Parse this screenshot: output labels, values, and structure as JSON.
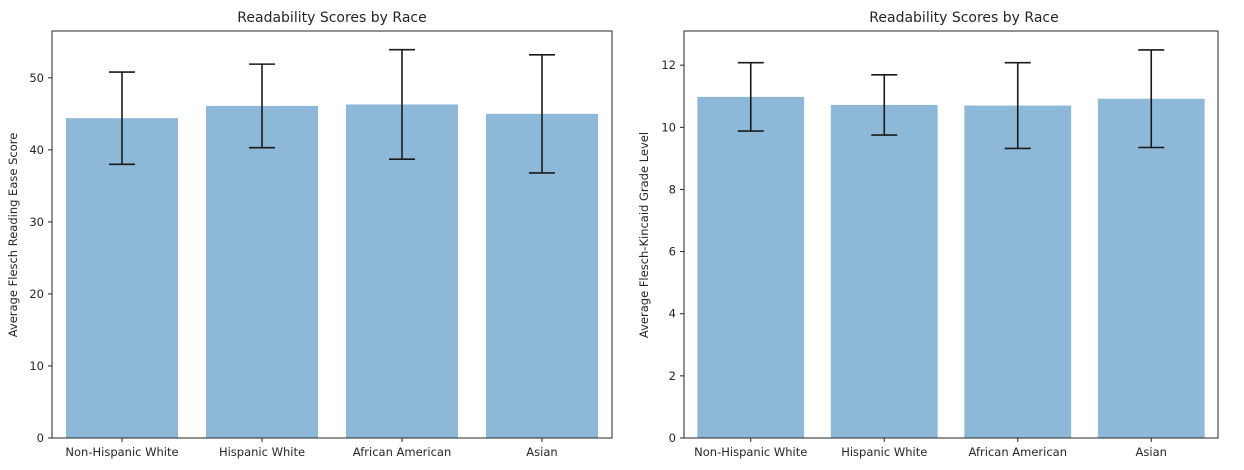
{
  "chart_data": [
    {
      "type": "bar",
      "title": "Readability Scores by Race",
      "xlabel": "",
      "ylabel": "Average Flesch Reading Ease Score",
      "categories": [
        "Non-Hispanic White",
        "Hispanic White",
        "African American",
        "Asian"
      ],
      "values": [
        44.4,
        46.1,
        46.3,
        45.0
      ],
      "error": [
        6.4,
        5.8,
        7.6,
        8.2
      ],
      "ylim": [
        0,
        56.5
      ],
      "yticks": [
        "0",
        "10",
        "20",
        "30",
        "40",
        "50"
      ],
      "grid": false,
      "bar_color": "#8db8d8",
      "errorbar_color": "#1a1a1a"
    },
    {
      "type": "bar",
      "title": "Readability Scores by Race",
      "xlabel": "",
      "ylabel": "Average Flesch-Kincaid Grade Level",
      "categories": [
        "Non-Hispanic White",
        "Hispanic White",
        "African American",
        "Asian"
      ],
      "values": [
        10.98,
        10.72,
        10.7,
        10.92
      ],
      "error": [
        1.1,
        0.97,
        1.38,
        1.57
      ],
      "ylim": [
        0,
        13.1
      ],
      "yticks": [
        "0",
        "2",
        "4",
        "6",
        "8",
        "10",
        "12"
      ],
      "grid": false,
      "bar_color": "#8db8d8",
      "errorbar_color": "#1a1a1a"
    }
  ]
}
